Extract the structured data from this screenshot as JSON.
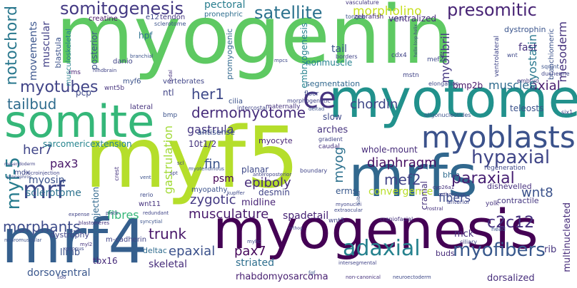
{
  "words": {
    "myogenin": "myogenin",
    "myf5": "myf5",
    "myotome": "myotome",
    "somite": "somite",
    "mrfs": "mrfs",
    "myogenesis": "myogenesis",
    "mrf4": "mrf4",
    "myoblasts": "myoblasts",
    "somitogenesis": "somitogenesis",
    "satellite": "satellite",
    "morpholino": "morpholino",
    "presomitic": "presomitic",
    "notochord": "notochord",
    "myotubes": "myotubes",
    "tailbud": "tailbud",
    "her1": "her1",
    "dermomyotome": "dermomyotome",
    "chordin": "chordin",
    "ce": "ce",
    "hypaxial": "hypaxial",
    "adaxial": "adaxial",
    "myofibers": "myofibers",
    "mrf": "mrf",
    "myf5_v": "myf-5",
    "paraxial": "paraxial",
    "c2c12": "c2c12",
    "epaxial": "epaxial",
    "pax7": "pax7",
    "musculature": "musculature",
    "morphants": "morphants",
    "trunk": "trunk",
    "fibres": "fibres",
    "diaphragm": "diaphragm",
    "epiboly": "epiboly",
    "gastrula": "gastrula",
    "her7": "her7",
    "pax3": "pax3",
    "myosin": "myosin",
    "sclerotome": "sclerotome",
    "zygotic": "zygotic",
    "psm": "psm",
    "fin": "fin",
    "mef2": "mef2",
    "axial": "axial",
    "muscles": "muscles",
    "wnt8": "wnt8",
    "fibers": "fibers",
    "convergence": "convergence",
    "spadetail": "spadetail",
    "myogenin_small": "myog",
    "movements": "movements",
    "muscular": "muscular",
    "mesoderm": "mesoderm",
    "myostatin": "myostatin",
    "myofibril": "myofibril",
    "gastrulation": "gastrulation",
    "dystrophin": "dystrophin",
    "fast": "fast",
    "tail": "tail",
    "nonmuscle": "nonmuscle",
    "segmentation": "segmentation",
    "striated": "striated",
    "skeletal": "skeletal",
    "dorsoventral": "dorsoventral",
    "rhabdomyosarcoma": "rhabdomyosarcoma",
    "dorsalized": "dorsalized",
    "multinucleated": "multinucleated",
    "tenth": "10t1/2",
    "sarcomeric": "sarcomericextension",
    "pectoral": "pectoral",
    "ventralized": "ventralized",
    "pronephric": "pronephric",
    "creatine": "creatine",
    "e12": "e12",
    "tendon": "tendon",
    "zebrafish": "zebrafish",
    "teleosts": "teleosts",
    "bmp2b": "bmp2b",
    "arches": "arches",
    "antisense": "antisense",
    "slow": "slow",
    "myocyte": "myocyte",
    "whole_mount": "whole-mount",
    "bhlh": "bhlh",
    "erms": "erms",
    "desmin": "desmin",
    "myopathy": "myopathy",
    "midline": "midline",
    "planar": "planar",
    "deltac": "deltac",
    "dishevelled": "dishevelled",
    "regeneration": "regeneration",
    "contractile": "contractile",
    "mck": "mck",
    "rib": "rib",
    "buds": "buds",
    "limb": "limb",
    "tbx16": "tbx16",
    "dystrophy": "dystrophy",
    "mcadherin": "m-cadherin",
    "wnt11": "wnt11",
    "mdx": "mdx",
    "coinjection": "co-injection",
    "hpf": "hpf",
    "danio": "danio",
    "myf6": "myf6",
    "posterior": "posterior",
    "pcp": "pcp",
    "ntl": "ntl",
    "cilia": "cilia",
    "lateral": "lateral",
    "promyogenic": "promyogenic",
    "embryogenesis": "embryogenesis",
    "cranial": "cranial",
    "vertebrates": "vertebrates",
    "blastula": "blastula",
    "musculoskeletal": "musculoskeletal",
    "branchiomeric": "branchiomeric",
    "ventrolateral": "ventrolateral",
    "mef2c": "mef2c",
    "cdx4": "cdx4",
    "sclerotome2": "sclerotome",
    "rms": "rms",
    "wnt5b": "wnt5b",
    "vasculature": "vasculature",
    "tongue": "tongue",
    "hedgehog": "hedgehog",
    "polarity": "polarity",
    "mstn": "mstn",
    "elongation": "elongation",
    "squint": "squint",
    "duchenne": "duchenne",
    "embryo": "embryo",
    "borders": "borders",
    "wnt": "wnt",
    "six1": "six1",
    "floor": "floor",
    "morphogenetic": "morphogenetic",
    "oligonucleotides": "oligonucleotides",
    "maternally": "maternally",
    "intercostal": "intercostal",
    "bmp": "bmp",
    "gradient": "gradient",
    "caudal": "caudal",
    "boundary": "boundary",
    "xenopus": "xenopus",
    "myotendinous": "myotendinous",
    "anteroposterior": "anteroposterior",
    "kupffer": "kupffer",
    "cyp26a1": "cyp26a1",
    "orthologue": "orthologue",
    "anterior": "anterior",
    "yolk": "yolk",
    "head": "head",
    "ciliary": "ciliary",
    "craniofacial": "craniofacial",
    "wnt5": "wnt5",
    "myoblast_fusion": "myonuclei",
    "extraocular": "extraocular",
    "neuromuscular": "neuromuscular",
    "expense": "expense",
    "blastomeres": "blastomeres",
    "myhc": "myhc",
    "redundant": "redundant",
    "syncytial": "syncytial",
    "intersegmental": "intersegmental",
    "noncanonical": "non-canonical",
    "neuroectoderm": "neuroectoderm",
    "fgf": "fgf",
    "sdo": "sdo",
    "hindbrain": "hindbrain",
    "mpcs": "mpcs",
    "nodal": "nodal",
    "branchial": "branchial",
    "microinjection": "microinjection",
    "mesendoderm": "mesendoderm",
    "pronephros": "pronephros",
    "crest": "crest",
    "vent": "vent",
    "spt": "spt",
    "scl": "scl",
    "rerio": "rerio",
    "rostral": "rostral",
    "solbus": "solbus",
    "orthog": "orthog",
    "helix": "helix-loop-helix",
    "plate": "plate",
    "myl2": "myl2",
    "deltad": "deltad",
    "glucose": "pax3/7"
  }
}
